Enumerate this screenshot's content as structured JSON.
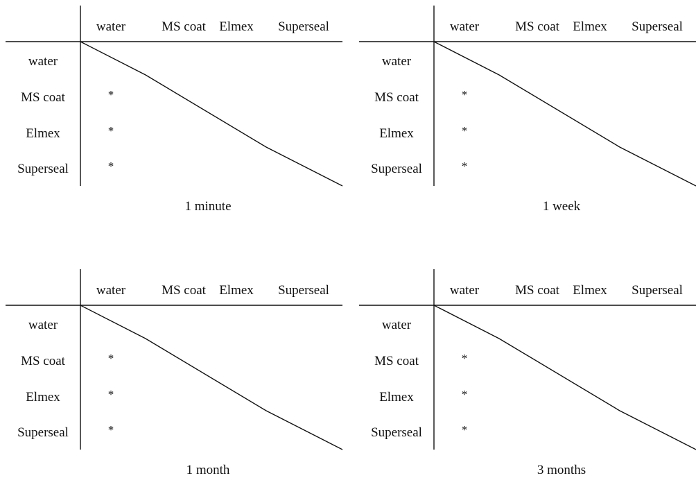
{
  "columns": [
    "water",
    "MS coat",
    "Elmex",
    "Superseal"
  ],
  "rows": [
    "water",
    "MS coat",
    "Elmex",
    "Superseal"
  ],
  "panels": [
    {
      "caption": "1 minute",
      "cells": [
        [
          "",
          "",
          "",
          ""
        ],
        [
          "*",
          "",
          "",
          ""
        ],
        [
          "*",
          "",
          "",
          ""
        ],
        [
          "*",
          "",
          "",
          ""
        ]
      ]
    },
    {
      "caption": "1 week",
      "cells": [
        [
          "",
          "",
          "",
          ""
        ],
        [
          "*",
          "",
          "",
          ""
        ],
        [
          "*",
          "",
          "",
          ""
        ],
        [
          "*",
          "",
          "",
          ""
        ]
      ]
    },
    {
      "caption": "1 month",
      "cells": [
        [
          "",
          "",
          "",
          ""
        ],
        [
          "*",
          "",
          "",
          ""
        ],
        [
          "*",
          "",
          "",
          ""
        ],
        [
          "*",
          "",
          "",
          ""
        ]
      ]
    },
    {
      "caption": "3 months",
      "cells": [
        [
          "",
          "",
          "",
          ""
        ],
        [
          "*",
          "",
          "",
          ""
        ],
        [
          "*",
          "",
          "",
          ""
        ],
        [
          "*",
          "",
          "",
          ""
        ]
      ]
    }
  ]
}
